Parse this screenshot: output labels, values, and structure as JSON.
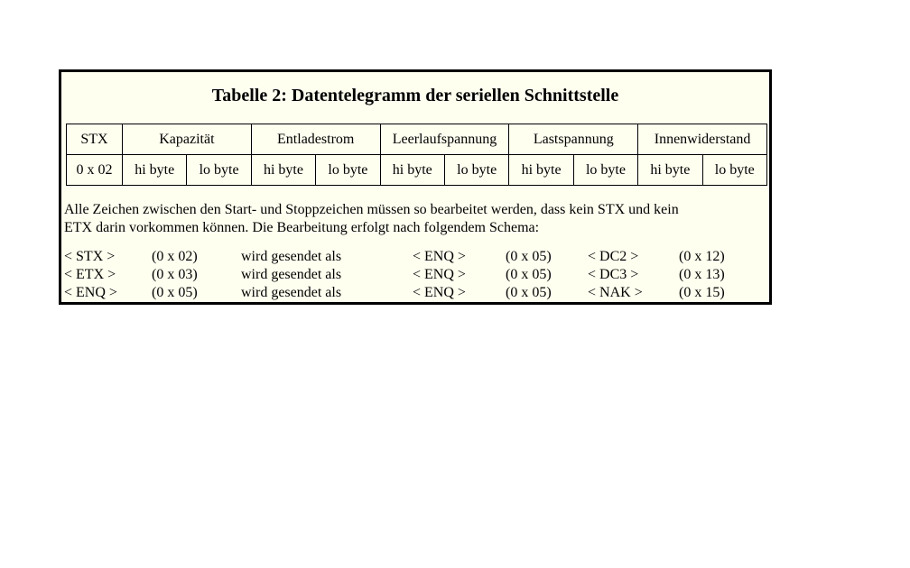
{
  "colors": {
    "page_background": "#ffffff",
    "panel_background": "#fffff0",
    "border": "#000000",
    "text": "#000000"
  },
  "panel": {
    "title": "Tabelle 2: Datentelegramm der seriellen Schnittstelle"
  },
  "table": {
    "header": [
      {
        "label": "STX"
      },
      {
        "label": "Kapazität"
      },
      {
        "label": "Entladestrom"
      },
      {
        "label": "Leerlaufspannung"
      },
      {
        "label": "Lastspannung"
      },
      {
        "label": "Innenwiderstand"
      }
    ],
    "data_row": [
      "0 x 02",
      "hi byte",
      "lo byte",
      "hi byte",
      "lo byte",
      "hi byte",
      "lo byte",
      "hi byte",
      "lo byte",
      "hi byte",
      "lo byte"
    ]
  },
  "note": {
    "lines": [
      "Alle Zeichen zwischen den Start- und Stoppzeichen müssen so bearbeitet werden, dass kein STX und kein",
      "ETX darin vorkommen können. Die Bearbeitung erfolgt nach folgendem Schema:"
    ]
  },
  "schema": {
    "rows": [
      [
        "< STX >",
        "(0 x 02)",
        "wird gesendet als",
        "< ENQ >",
        "(0 x 05)",
        "< DC2 >",
        "(0 x 12)"
      ],
      [
        "< ETX >",
        "(0 x 03)",
        "wird gesendet als",
        "< ENQ >",
        "(0 x 05)",
        "< DC3 >",
        "(0 x 13)"
      ],
      [
        "< ENQ >",
        "(0 x 05)",
        "wird gesendet als",
        "< ENQ >",
        "(0 x 05)",
        "< NAK >",
        "(0 x 15)"
      ]
    ]
  }
}
